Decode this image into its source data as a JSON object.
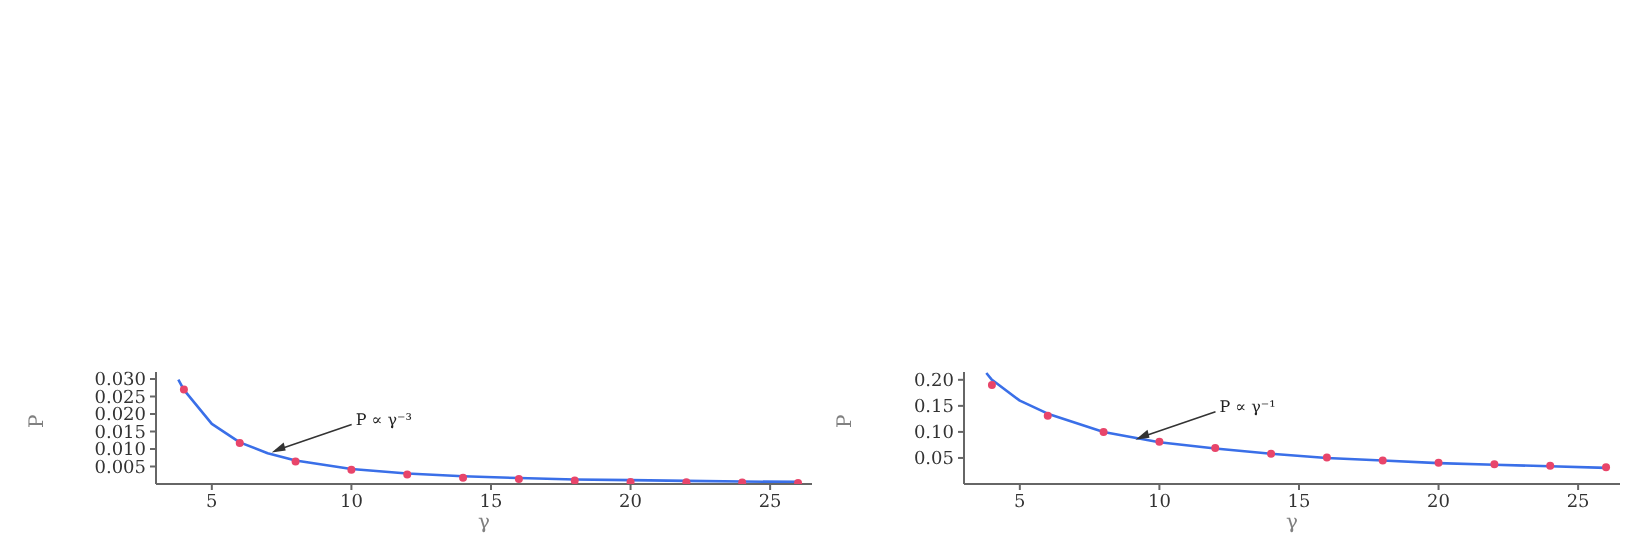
{
  "chart_data": [
    {
      "type": "scatter",
      "xlabel": "γ",
      "ylabel": "P",
      "xlim": [
        3,
        26.5
      ],
      "xticks": [
        5,
        10,
        15,
        20,
        25
      ],
      "ylim": [
        0,
        0.032
      ],
      "yticks": [
        0.005,
        {
          "value": 0.01,
          "label": "0.010"
        },
        0.015,
        {
          "value": 0.02,
          "label": "0.020"
        },
        0.025,
        {
          "value": 0.03,
          "label": "0.030"
        }
      ],
      "grid": false,
      "legend": false,
      "annotations": [
        {
          "text": "P ∝ γ⁻³",
          "x": 7,
          "y": 0.009
        }
      ],
      "series": [
        {
          "color": "#e8456a",
          "marker": "circle",
          "x": [
            4,
            6,
            8,
            10,
            12,
            14,
            16,
            18,
            20,
            22,
            24,
            26
          ],
          "values": [
            0.027,
            0.0117,
            0.0064,
            0.0041,
            0.0027,
            0.0018,
            0.0014,
            0.001,
            0.0006,
            0.0005,
            0.0004,
            0.0003
          ]
        },
        {
          "type": "line",
          "color": "#3a6fe8",
          "marker": "none",
          "x": [
            3.8,
            4,
            5,
            6,
            7,
            8,
            10,
            12,
            14,
            16,
            18,
            20,
            22,
            24,
            26
          ],
          "values": [
            0.0298,
            0.0269,
            0.0172,
            0.0119,
            0.0088,
            0.0067,
            0.0043,
            0.003,
            0.0022,
            0.0017,
            0.0013,
            0.0011,
            0.0009,
            0.0007,
            0.0006
          ]
        }
      ]
    },
    {
      "type": "scatter",
      "xlabel": "γ",
      "ylabel": "P",
      "xlim": [
        3,
        26.5
      ],
      "xticks": [
        5,
        10,
        15,
        20,
        25
      ],
      "ylim": [
        0,
        0.215
      ],
      "yticks": [
        0.05,
        {
          "value": 0.1,
          "label": "0.10"
        },
        0.15,
        {
          "value": 0.2,
          "label": "0.20"
        }
      ],
      "grid": false,
      "legend": false,
      "annotations": [
        {
          "text": "P ∝ γ⁻¹",
          "x": 9,
          "y": 0.085
        }
      ],
      "series": [
        {
          "color": "#e8456a",
          "marker": "circle",
          "x": [
            4,
            6,
            8,
            10,
            12,
            14,
            16,
            18,
            20,
            22,
            24,
            26
          ],
          "values": [
            0.19,
            0.131,
            0.1,
            0.081,
            0.069,
            0.058,
            0.051,
            0.045,
            0.041,
            0.038,
            0.035,
            0.032
          ]
        },
        {
          "type": "line",
          "color": "#3a6fe8",
          "marker": "none",
          "x": [
            3.8,
            4,
            5,
            6,
            8,
            10,
            12,
            14,
            16,
            18,
            20,
            22,
            24,
            26
          ],
          "values": [
            0.213,
            0.2,
            0.16,
            0.135,
            0.1,
            0.08,
            0.068,
            0.058,
            0.05,
            0.045,
            0.04,
            0.037,
            0.034,
            0.031
          ]
        }
      ]
    }
  ]
}
